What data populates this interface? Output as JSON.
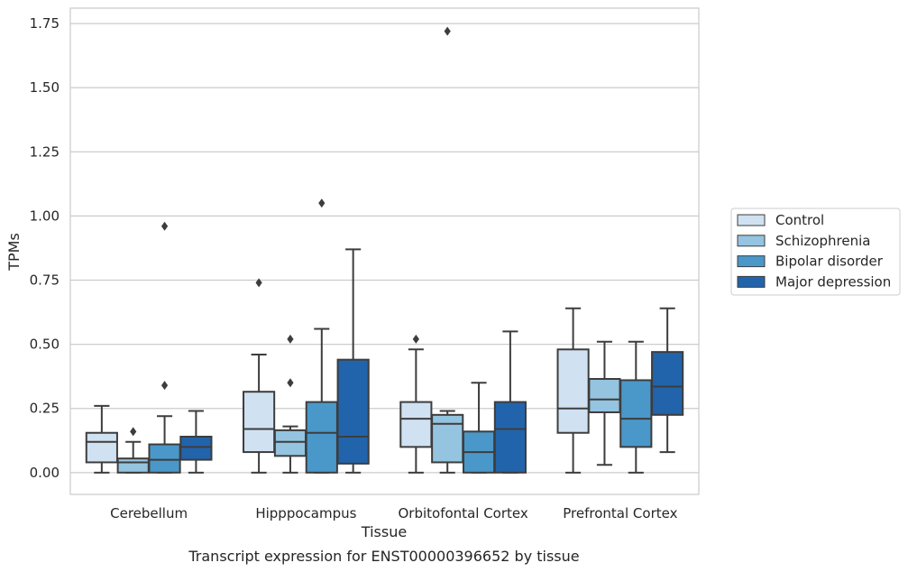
{
  "chart_data": {
    "type": "box",
    "xlabel": "Tissue",
    "ylabel": "TPMs",
    "caption": "Transcript expression for ENST00000396652 by tissue",
    "categories": [
      "Cerebellum",
      "Hipppocampus",
      "Orbitofontal Cortex",
      "Prefrontal Cortex"
    ],
    "ylim": [
      -0.085,
      1.81
    ],
    "yticks": [
      0.0,
      0.25,
      0.5,
      0.75,
      1.0,
      1.25,
      1.5,
      1.75
    ],
    "ytick_labels": [
      "0.00",
      "0.25",
      "0.50",
      "0.75",
      "1.00",
      "1.25",
      "1.50",
      "1.75"
    ],
    "grid": true,
    "legend_position": "right",
    "series": [
      {
        "name": "Control",
        "color": "#d0e1f2",
        "boxes": [
          {
            "whislo": 0.0,
            "q1": 0.04,
            "med": 0.12,
            "q3": 0.155,
            "whishi": 0.26,
            "fliers": []
          },
          {
            "whislo": 0.0,
            "q1": 0.08,
            "med": 0.17,
            "q3": 0.315,
            "whishi": 0.46,
            "fliers": [
              0.74
            ]
          },
          {
            "whislo": 0.0,
            "q1": 0.1,
            "med": 0.21,
            "q3": 0.275,
            "whishi": 0.48,
            "fliers": [
              0.52
            ]
          },
          {
            "whislo": 0.0,
            "q1": 0.155,
            "med": 0.25,
            "q3": 0.48,
            "whishi": 0.64,
            "fliers": []
          }
        ]
      },
      {
        "name": "Schizophrenia",
        "color": "#94c4df",
        "boxes": [
          {
            "whislo": 0.0,
            "q1": 0.0,
            "med": 0.04,
            "q3": 0.055,
            "whishi": 0.12,
            "fliers": [
              0.16
            ]
          },
          {
            "whislo": 0.0,
            "q1": 0.065,
            "med": 0.12,
            "q3": 0.165,
            "whishi": 0.18,
            "fliers": [
              0.35,
              0.52
            ]
          },
          {
            "whislo": 0.0,
            "q1": 0.04,
            "med": 0.19,
            "q3": 0.225,
            "whishi": 0.24,
            "fliers": [
              1.72
            ]
          },
          {
            "whislo": 0.03,
            "q1": 0.235,
            "med": 0.285,
            "q3": 0.365,
            "whishi": 0.51,
            "fliers": []
          }
        ]
      },
      {
        "name": "Bipolar disorder",
        "color": "#4a98c9",
        "boxes": [
          {
            "whislo": 0.0,
            "q1": 0.0,
            "med": 0.05,
            "q3": 0.11,
            "whishi": 0.22,
            "fliers": [
              0.34,
              0.96
            ]
          },
          {
            "whislo": 0.0,
            "q1": 0.0,
            "med": 0.155,
            "q3": 0.275,
            "whishi": 0.56,
            "fliers": [
              1.05
            ]
          },
          {
            "whislo": 0.0,
            "q1": 0.0,
            "med": 0.08,
            "q3": 0.16,
            "whishi": 0.35,
            "fliers": []
          },
          {
            "whislo": 0.0,
            "q1": 0.1,
            "med": 0.21,
            "q3": 0.36,
            "whishi": 0.51,
            "fliers": []
          }
        ]
      },
      {
        "name": "Major depression",
        "color": "#2164ab",
        "boxes": [
          {
            "whislo": 0.0,
            "q1": 0.05,
            "med": 0.1,
            "q3": 0.14,
            "whishi": 0.24,
            "fliers": []
          },
          {
            "whislo": 0.0,
            "q1": 0.035,
            "med": 0.14,
            "q3": 0.44,
            "whishi": 0.87,
            "fliers": []
          },
          {
            "whislo": 0.0,
            "q1": 0.0,
            "med": 0.17,
            "q3": 0.275,
            "whishi": 0.55,
            "fliers": []
          },
          {
            "whislo": 0.08,
            "q1": 0.225,
            "med": 0.335,
            "q3": 0.47,
            "whishi": 0.64,
            "fliers": []
          }
        ]
      }
    ]
  }
}
